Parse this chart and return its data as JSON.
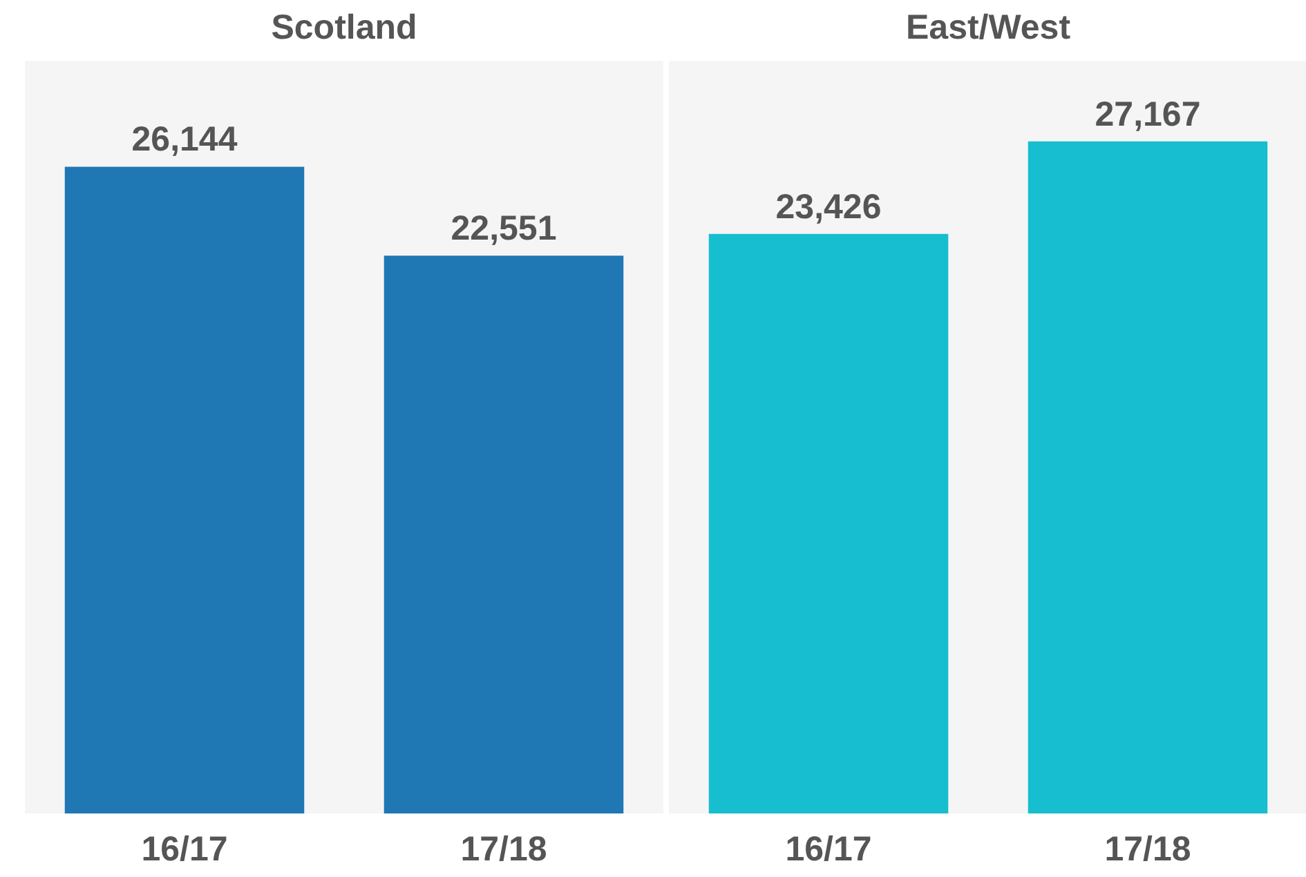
{
  "chart_data": [
    {
      "type": "bar",
      "title": "Scotland",
      "categories": [
        "16/17",
        "17/18"
      ],
      "values": [
        26144,
        22551
      ],
      "value_labels": [
        "26,144",
        "22,551"
      ],
      "color": "#1f77b4"
    },
    {
      "type": "bar",
      "title": "East/West",
      "categories": [
        "16/17",
        "17/18"
      ],
      "values": [
        23426,
        27167
      ],
      "value_labels": [
        "23,426",
        "27,167"
      ],
      "color": "#17becf"
    }
  ]
}
